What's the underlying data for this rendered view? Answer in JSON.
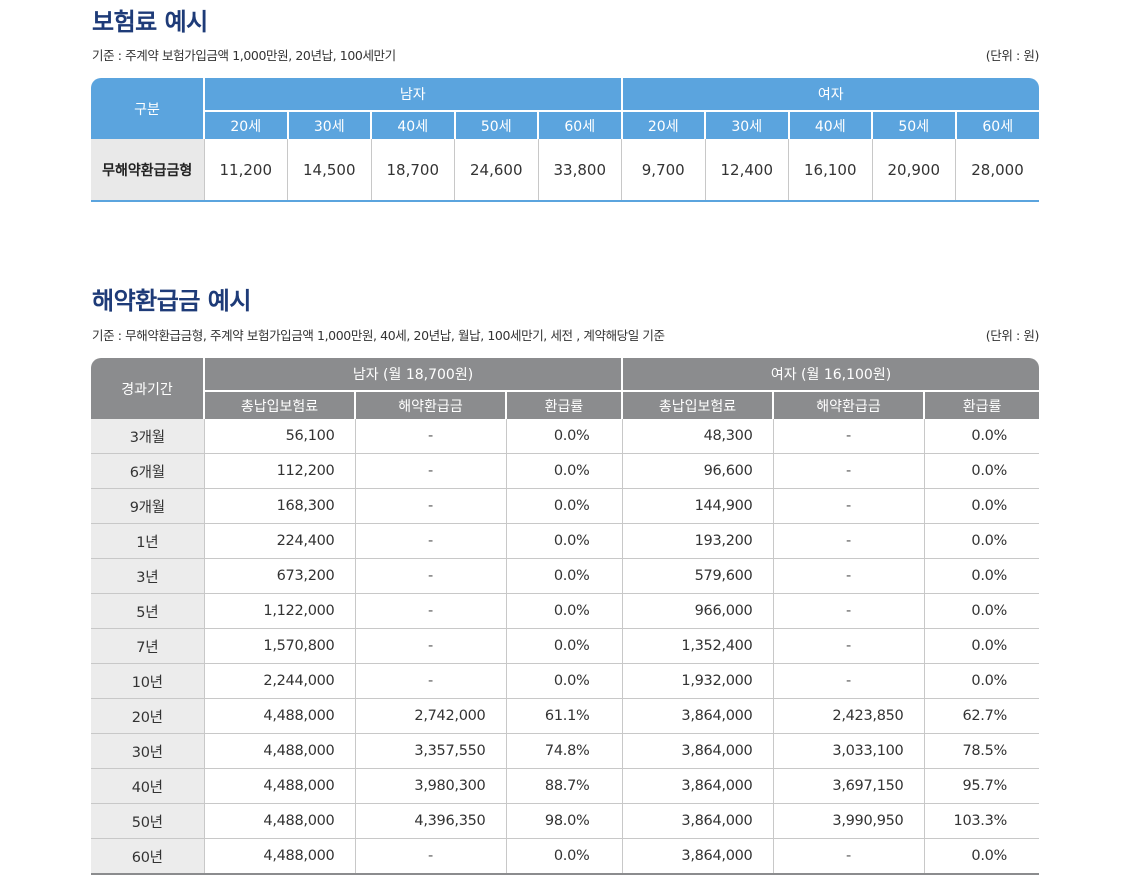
{
  "premium": {
    "title": "보험료 예시",
    "subtitle": "기준 : 주계약 보험가입금액 1,000만원, 20년납, 100세만기",
    "unit": "(단위 : 원)",
    "corner_label": "구분",
    "male_label": "남자",
    "female_label": "여자",
    "ages": [
      "20세",
      "30세",
      "40세",
      "50세",
      "60세"
    ],
    "row_label": "무해약환급금형",
    "male_values": [
      "11,200",
      "14,500",
      "18,700",
      "24,600",
      "33,800"
    ],
    "female_values": [
      "9,700",
      "12,400",
      "16,100",
      "20,900",
      "28,000"
    ]
  },
  "refund": {
    "title": "해약환급금 예시",
    "subtitle": "기준 : 무해약환급금형, 주계약 보험가입금액 1,000만원, 40세, 20년납, 월납, 100세만기, 세전 , 계약해당일 기준",
    "unit": "(단위 : 원)",
    "corner_label": "경과기간",
    "male_label": "남자 (월 18,700원)",
    "female_label": "여자 (월 16,100원)",
    "col_total": "총납입보험료",
    "col_refund": "해약환급금",
    "col_rate": "환급률",
    "rows": [
      {
        "period": "3개월",
        "m_total": "56,100",
        "m_refund": "-",
        "m_rate": "0.0%",
        "f_total": "48,300",
        "f_refund": "-",
        "f_rate": "0.0%"
      },
      {
        "period": "6개월",
        "m_total": "112,200",
        "m_refund": "-",
        "m_rate": "0.0%",
        "f_total": "96,600",
        "f_refund": "-",
        "f_rate": "0.0%"
      },
      {
        "period": "9개월",
        "m_total": "168,300",
        "m_refund": "-",
        "m_rate": "0.0%",
        "f_total": "144,900",
        "f_refund": "-",
        "f_rate": "0.0%"
      },
      {
        "period": "1년",
        "m_total": "224,400",
        "m_refund": "-",
        "m_rate": "0.0%",
        "f_total": "193,200",
        "f_refund": "-",
        "f_rate": "0.0%"
      },
      {
        "period": "3년",
        "m_total": "673,200",
        "m_refund": "-",
        "m_rate": "0.0%",
        "f_total": "579,600",
        "f_refund": "-",
        "f_rate": "0.0%"
      },
      {
        "period": "5년",
        "m_total": "1,122,000",
        "m_refund": "-",
        "m_rate": "0.0%",
        "f_total": "966,000",
        "f_refund": "-",
        "f_rate": "0.0%"
      },
      {
        "period": "7년",
        "m_total": "1,570,800",
        "m_refund": "-",
        "m_rate": "0.0%",
        "f_total": "1,352,400",
        "f_refund": "-",
        "f_rate": "0.0%"
      },
      {
        "period": "10년",
        "m_total": "2,244,000",
        "m_refund": "-",
        "m_rate": "0.0%",
        "f_total": "1,932,000",
        "f_refund": "-",
        "f_rate": "0.0%"
      },
      {
        "period": "20년",
        "m_total": "4,488,000",
        "m_refund": "2,742,000",
        "m_rate": "61.1%",
        "f_total": "3,864,000",
        "f_refund": "2,423,850",
        "f_rate": "62.7%"
      },
      {
        "period": "30년",
        "m_total": "4,488,000",
        "m_refund": "3,357,550",
        "m_rate": "74.8%",
        "f_total": "3,864,000",
        "f_refund": "3,033,100",
        "f_rate": "78.5%"
      },
      {
        "period": "40년",
        "m_total": "4,488,000",
        "m_refund": "3,980,300",
        "m_rate": "88.7%",
        "f_total": "3,864,000",
        "f_refund": "3,697,150",
        "f_rate": "95.7%"
      },
      {
        "period": "50년",
        "m_total": "4,488,000",
        "m_refund": "4,396,350",
        "m_rate": "98.0%",
        "f_total": "3,864,000",
        "f_refund": "3,990,950",
        "f_rate": "103.3%"
      },
      {
        "period": "60년",
        "m_total": "4,488,000",
        "m_refund": "-",
        "m_rate": "0.0%",
        "f_total": "3,864,000",
        "f_refund": "-",
        "f_rate": "0.0%"
      }
    ]
  },
  "colors": {
    "title": "#1e3b78",
    "premium_header": "#5ba4de",
    "refund_header": "#8b8c8e",
    "row_label_bg": "#ececec"
  }
}
